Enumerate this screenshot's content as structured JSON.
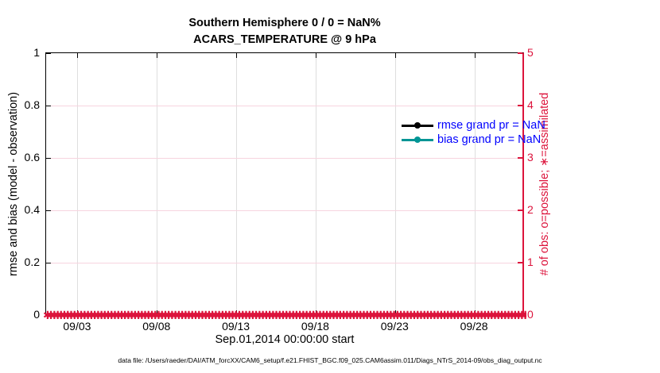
{
  "colors": {
    "axis_left": "#000000",
    "axis_right": "#DC143C",
    "grid_vertical": "#DEDEDE",
    "grid_horizontal": "#F7D4DF",
    "legend_text": "#0000FF",
    "rmse_series": "#000000",
    "bias_series": "#009595",
    "obs_markers": "#DC143C",
    "background": "#FFFFFF"
  },
  "chart_data": {
    "type": "line",
    "title": "Southern Hemisphere 0 / 0 = NaN%",
    "subtitle": "ACARS_TEMPERATURE @ 9 hPa",
    "x_axis": {
      "label": "Sep.01,2014 00:00:00 start",
      "range_days": [
        0,
        30
      ],
      "tick_days": [
        2,
        7,
        12,
        17,
        22,
        27
      ],
      "tick_labels": [
        "09/03",
        "09/08",
        "09/13",
        "09/18",
        "09/23",
        "09/28"
      ]
    },
    "y_left": {
      "label": "rmse and bias (model - observation)",
      "range": [
        0,
        1
      ],
      "ticks": [
        0,
        0.2,
        0.4,
        0.6,
        0.8,
        1
      ],
      "tick_labels": [
        "0",
        "0.2",
        "0.4",
        "0.6",
        "0.8",
        "1"
      ]
    },
    "y_right": {
      "label": "# of obs: o=possible; ∗=assimilated",
      "range": [
        0,
        5
      ],
      "ticks": [
        0,
        1,
        2,
        3,
        4,
        5
      ],
      "tick_labels": [
        "0",
        "1",
        "2",
        "3",
        "4",
        "5"
      ]
    },
    "series": [
      {
        "name": "rmse grand pr = NaN",
        "axis": "left",
        "color": "#000000",
        "marker": "circle",
        "values": []
      },
      {
        "name": "bias grand pr = NaN",
        "axis": "left",
        "color": "#009595",
        "marker": "circle",
        "values": []
      },
      {
        "name": "# of obs (o=possible; ∗=assimilated)",
        "axis": "right",
        "color": "#DC143C",
        "marker": "asterisk",
        "marker_glyph": "✱",
        "y_constant": 0,
        "x_extent_days": [
          0,
          30
        ]
      }
    ],
    "legend": {
      "position": "top-right",
      "text_color": "#0000FF",
      "entries": [
        "rmse grand pr = NaN",
        "bias grand pr = NaN"
      ]
    },
    "grid": {
      "vertical": true,
      "horizontal": true
    }
  },
  "footer": {
    "data_file_label": "data file: /Users/raeder/DAI/ATM_forcXX/CAM6_setup/f.e21.FHIST_BGC.f09_025.CAM6assim.011/Diags_NTrS_2014-09/obs_diag_output.nc"
  }
}
